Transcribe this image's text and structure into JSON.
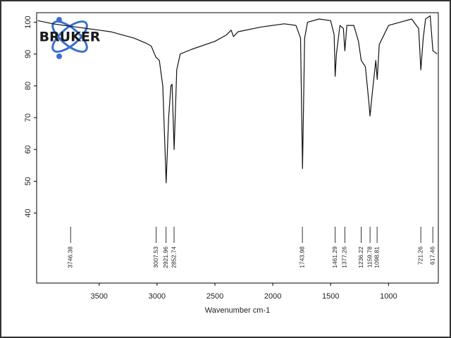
{
  "logo": "BRUKER",
  "chart_data": {
    "type": "line",
    "x_label": "Wavenumber cm-1",
    "xlim": [
      4040,
      570
    ],
    "ylim": [
      18,
      103
    ],
    "xticks": [
      3500,
      3000,
      2500,
      2000,
      1500,
      1000
    ],
    "yticks": [
      40,
      50,
      60,
      70,
      80,
      90,
      100
    ],
    "color": "#111111",
    "x": [
      4030,
      3900,
      3800,
      3700,
      3600,
      3500,
      3400,
      3300,
      3200,
      3100,
      3050,
      3010,
      2980,
      2950,
      2921,
      2900,
      2880,
      2870,
      2852,
      2830,
      2800,
      2700,
      2500,
      2400,
      2360,
      2340,
      2300,
      2100,
      1900,
      1800,
      1760,
      1743,
      1725,
      1700,
      1600,
      1500,
      1470,
      1461,
      1450,
      1420,
      1390,
      1377,
      1360,
      1300,
      1260,
      1236,
      1200,
      1170,
      1160,
      1140,
      1110,
      1098,
      1080,
      1000,
      900,
      800,
      740,
      721,
      700,
      680,
      640,
      617,
      580
    ],
    "values": [
      100.5,
      99.5,
      99,
      98.5,
      98,
      97.5,
      97,
      96,
      95,
      93.5,
      92.5,
      89,
      88,
      80,
      49.5,
      70,
      80,
      80.5,
      60,
      85,
      90,
      91.5,
      94,
      96,
      97.5,
      95.5,
      97,
      98.5,
      99.5,
      99,
      95,
      54,
      95,
      100,
      101,
      100.5,
      96,
      83,
      90,
      99,
      98,
      91,
      99,
      99,
      94,
      88,
      86,
      75,
      70.5,
      78,
      88,
      82,
      93,
      99,
      100,
      101,
      98,
      85,
      95,
      101,
      102,
      91,
      90
    ],
    "peaks": [
      3746.38,
      3007.53,
      2921.96,
      2852.74,
      1743.98,
      1461.29,
      1377.26,
      1236.22,
      1159.78,
      1098.81,
      721.26,
      617.46
    ]
  }
}
